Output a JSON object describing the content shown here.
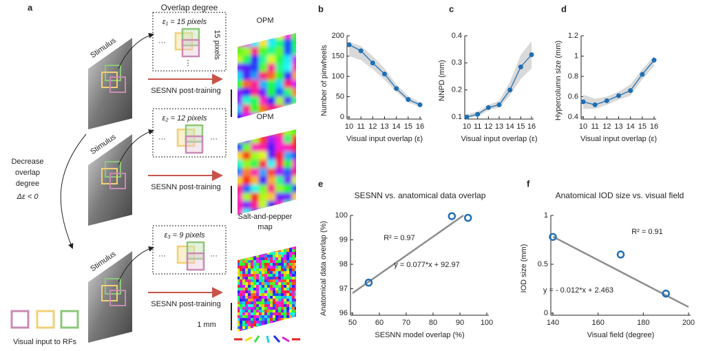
{
  "panel_a": {
    "label": "a",
    "header": "Overlap degree",
    "rows": [
      {
        "stimulus": "Stimulus",
        "epsilon": "ε₁ = 15 pixels",
        "height": "15 pixels",
        "map": [
          "OPM"
        ],
        "training": "SESNN post-training"
      },
      {
        "stimulus": "Stimulus",
        "epsilon": "ε₂ = 12 pixels",
        "map": [
          "OPM"
        ],
        "training": "SESNN post-training"
      },
      {
        "stimulus": "Stimulus",
        "epsilon": "ε₃ = 9 pixels",
        "map": [
          "Salt-and-pepper",
          "map"
        ],
        "training": "SESNN post-training"
      }
    ],
    "decrease": [
      "Decrease",
      "overlap",
      "degree"
    ],
    "delta": "Δε < 0",
    "scale": "1 mm",
    "legend": "Visual input to RFs"
  },
  "chart_data": [
    {
      "type": "line",
      "panel": "b",
      "x": [
        10,
        11,
        12,
        13,
        14,
        15,
        16
      ],
      "values": [
        178,
        163,
        133,
        106,
        70,
        43,
        30
      ],
      "band": {
        "lower": [
          150,
          140,
          118,
          92,
          62,
          36,
          25
        ],
        "upper": [
          185,
          175,
          150,
          120,
          80,
          52,
          36
        ]
      },
      "xlim": [
        10,
        16
      ],
      "xticks": [
        10,
        11,
        12,
        13,
        14,
        15,
        16
      ],
      "ylim": [
        0,
        200
      ],
      "yticks": [
        0,
        50,
        100,
        150,
        200
      ],
      "xlabel": "Visual input overlap (ε)",
      "ylabel": "Number of pinwheels",
      "color": "#1f6fb4",
      "band_color": "#d9d9d9"
    },
    {
      "type": "line",
      "panel": "c",
      "x": [
        10,
        11,
        12,
        13,
        14,
        15,
        16
      ],
      "values": [
        0.1,
        0.11,
        0.135,
        0.145,
        0.2,
        0.285,
        0.33
      ],
      "band": {
        "lower": [
          0.1,
          0.1,
          0.125,
          0.135,
          0.18,
          0.24,
          0.28
        ],
        "upper": [
          0.11,
          0.12,
          0.145,
          0.16,
          0.23,
          0.33,
          0.38
        ]
      },
      "xlim": [
        10,
        16
      ],
      "xticks": [
        10,
        11,
        12,
        13,
        14,
        15,
        16
      ],
      "ylim": [
        0.1,
        0.4
      ],
      "yticks": [
        0.1,
        0.2,
        0.3,
        0.4
      ],
      "xlabel": "Visual input overlap (ε)",
      "ylabel": "NNPD (mm)",
      "color": "#1f6fb4",
      "band_color": "#d9d9d9"
    },
    {
      "type": "line",
      "panel": "d",
      "x": [
        10,
        11,
        12,
        13,
        14,
        15,
        16
      ],
      "values": [
        0.55,
        0.52,
        0.56,
        0.61,
        0.66,
        0.82,
        0.96
      ],
      "band": {
        "lower": [
          0.48,
          0.48,
          0.52,
          0.57,
          0.61,
          0.77,
          0.9
        ],
        "upper": [
          0.62,
          0.58,
          0.6,
          0.65,
          0.72,
          0.87,
          1.0
        ]
      },
      "xlim": [
        10,
        16
      ],
      "xticks": [
        10,
        11,
        12,
        13,
        14,
        15,
        16
      ],
      "ylim": [
        0.4,
        1.2
      ],
      "yticks": [
        0.4,
        0.6,
        0.8,
        1,
        1.2
      ],
      "xlabel": "Visual input overlap (ε)",
      "ylabel": "Hypercolumn size (mm)",
      "color": "#1f6fb4",
      "band_color": "#d9d9d9"
    },
    {
      "type": "scatter",
      "panel": "e",
      "title": "SESNN vs. anatomical data overlap",
      "x": [
        56,
        87,
        93
      ],
      "y": [
        97.25,
        99.97,
        99.9
      ],
      "fit": {
        "slope": 0.077,
        "intercept": 92.97
      },
      "annotations": [
        "R² = 0.97",
        "y = 0.077*x + 92.97"
      ],
      "xlim": [
        50,
        100
      ],
      "xticks": [
        50,
        60,
        70,
        80,
        90,
        100
      ],
      "ylim": [
        96,
        100
      ],
      "yticks": [
        96,
        97,
        98,
        99,
        100
      ],
      "xlabel": "SESNN model overlap (%)",
      "ylabel": "Anatomical data overlap (%)",
      "color": "#1f6fb4",
      "fit_color": "#8c8c8c"
    },
    {
      "type": "scatter",
      "panel": "f",
      "title": "Anatomical IOD size vs. visual field",
      "x": [
        140,
        170,
        190
      ],
      "y": [
        0.78,
        0.6,
        0.2
      ],
      "fit": {
        "slope": -0.012,
        "intercept": 2.463
      },
      "annotations": [
        "R² = 0.91",
        "y = - 0.012*x + 2.463"
      ],
      "xlim": [
        140,
        200
      ],
      "xticks": [
        140,
        160,
        180,
        200
      ],
      "ylim": [
        0,
        1
      ],
      "yticks": [
        0,
        0.5,
        1
      ],
      "xlabel": "Visual field (degree)",
      "ylabel": "IOD size (mm)",
      "color": "#1f6fb4",
      "fit_color": "#8c8c8c"
    }
  ]
}
